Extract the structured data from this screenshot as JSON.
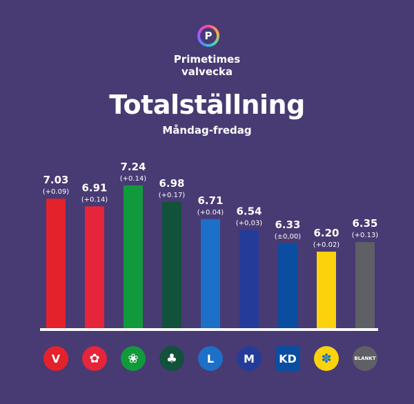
{
  "header": {
    "brand_line1": "Primetimes",
    "brand_line2": "valvecka",
    "logo_letter": "P"
  },
  "chart_data": {
    "type": "bar",
    "title": "Totalställning",
    "subtitle": "Måndag-fredag",
    "ylim": [
      5.0,
      7.4
    ],
    "grid": false,
    "categories": [
      "V",
      "S",
      "MP",
      "C",
      "L",
      "M",
      "KD",
      "SD",
      "BLANKT"
    ],
    "values": [
      7.03,
      6.91,
      7.24,
      6.98,
      6.71,
      6.54,
      6.33,
      6.2,
      6.35
    ],
    "value_labels": [
      "7.03",
      "6.91",
      "7.24",
      "6.98",
      "6.71",
      "6.54",
      "6.33",
      "6.20",
      "6.35"
    ],
    "change_labels": [
      "(+0.09)",
      "(+0.14)",
      "(+0.14)",
      "(+0.17)",
      "(+0.04)",
      "(+0,03)",
      "(±0,00)",
      "(+0.02)",
      "(+0.13)"
    ],
    "colors": [
      "#e3222c",
      "#e6243a",
      "#109a3c",
      "#12513a",
      "#1c70c8",
      "#253b99",
      "#0b4da0",
      "#fcd20c",
      "#5f5f66"
    ]
  },
  "party_icons": [
    {
      "name": "vansterpartiet-icon",
      "bg": "#e3222c",
      "text": "V"
    },
    {
      "name": "socialdemokraterna-icon",
      "bg": "#e6243a",
      "text": ""
    },
    {
      "name": "miljopartiet-icon",
      "bg": "#109a3c",
      "text": ""
    },
    {
      "name": "centerpartiet-icon",
      "bg": "#12513a",
      "text": ""
    },
    {
      "name": "liberalerna-icon",
      "bg": "#1c70c8",
      "text": "L"
    },
    {
      "name": "moderaterna-icon",
      "bg": "#253b99",
      "text": "M"
    },
    {
      "name": "kristdemokraterna-icon",
      "bg": "#0b4da0",
      "text": "KD"
    },
    {
      "name": "sverigedemokraterna-icon",
      "bg": "#fcd20c",
      "text": ""
    },
    {
      "name": "blankt-icon",
      "bg": "#5f5f66",
      "text": "BLANKT"
    }
  ]
}
